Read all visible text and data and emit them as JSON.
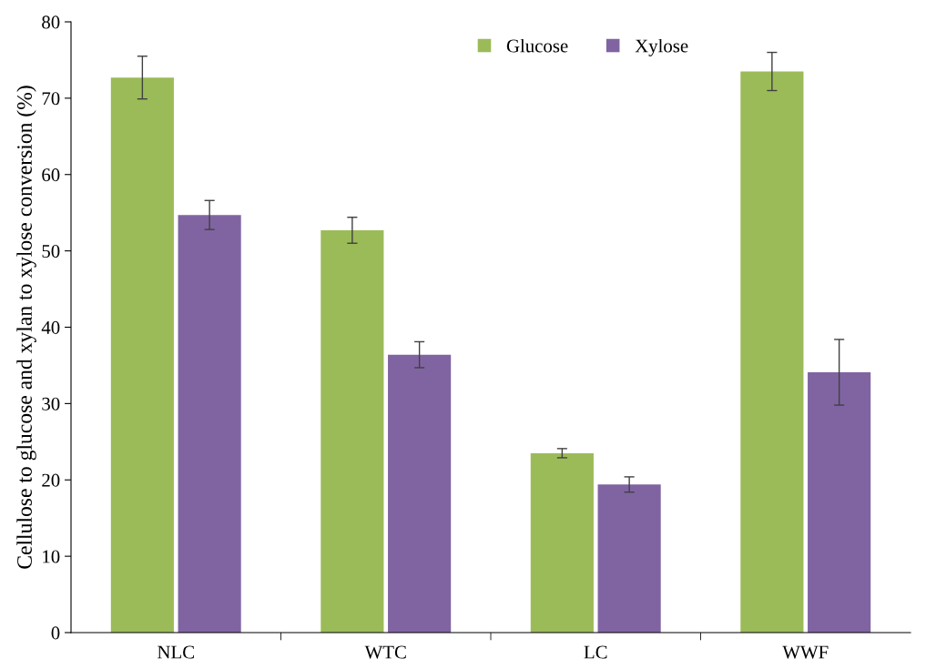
{
  "chart_data": {
    "type": "bar",
    "ylabel": "Cellulose to glucose and xylan to xylose conversion (%)",
    "categories": [
      "NLC",
      "WTC",
      "LC",
      "WWF"
    ],
    "series": [
      {
        "name": "Glucose",
        "color": "#9bbb59",
        "values": [
          72.7,
          52.7,
          23.5,
          73.5
        ],
        "errors": [
          2.8,
          1.7,
          0.6,
          2.5
        ]
      },
      {
        "name": "Xylose",
        "color": "#8064a2",
        "values": [
          54.7,
          36.4,
          19.4,
          34.1
        ],
        "errors": [
          1.9,
          1.7,
          1.0,
          4.3
        ]
      }
    ],
    "ylim": [
      0,
      80
    ],
    "yticks": [
      0,
      10,
      20,
      30,
      40,
      50,
      60,
      70,
      80
    ],
    "grid": false,
    "legend": "top"
  }
}
